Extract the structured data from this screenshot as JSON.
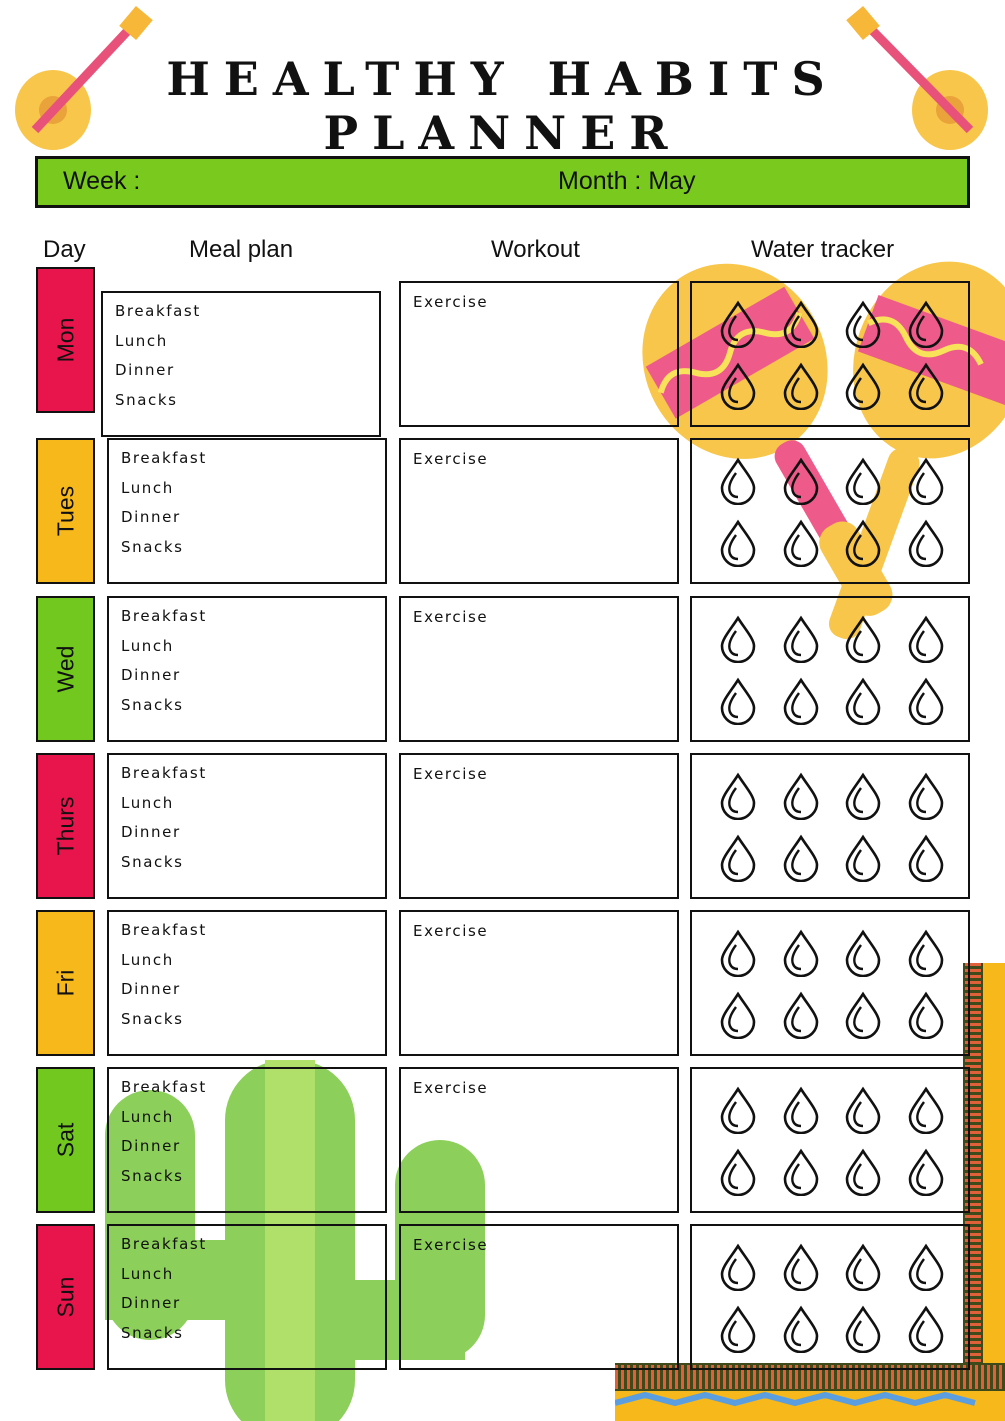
{
  "title": "HEALTHY HABITS PLANNER",
  "week_label": "Week :",
  "month_label": "Month : May",
  "headers": {
    "day": "Day",
    "meal": "Meal plan",
    "workout": "Workout",
    "water": "Water tracker"
  },
  "meal_items": [
    "Breakfast",
    "Lunch",
    "Dinner",
    "Snacks"
  ],
  "exercise_label": "Exercise",
  "water_drops_per_day": 8,
  "days": [
    {
      "name": "Mon",
      "color": "#e8144c"
    },
    {
      "name": "Tues",
      "color": "#f7b81b"
    },
    {
      "name": "Wed",
      "color": "#72c81f"
    },
    {
      "name": "Thurs",
      "color": "#e8144c"
    },
    {
      "name": "Fri",
      "color": "#f7b81b"
    },
    {
      "name": "Sat",
      "color": "#72c81f"
    },
    {
      "name": "Sun",
      "color": "#e8144c"
    }
  ]
}
